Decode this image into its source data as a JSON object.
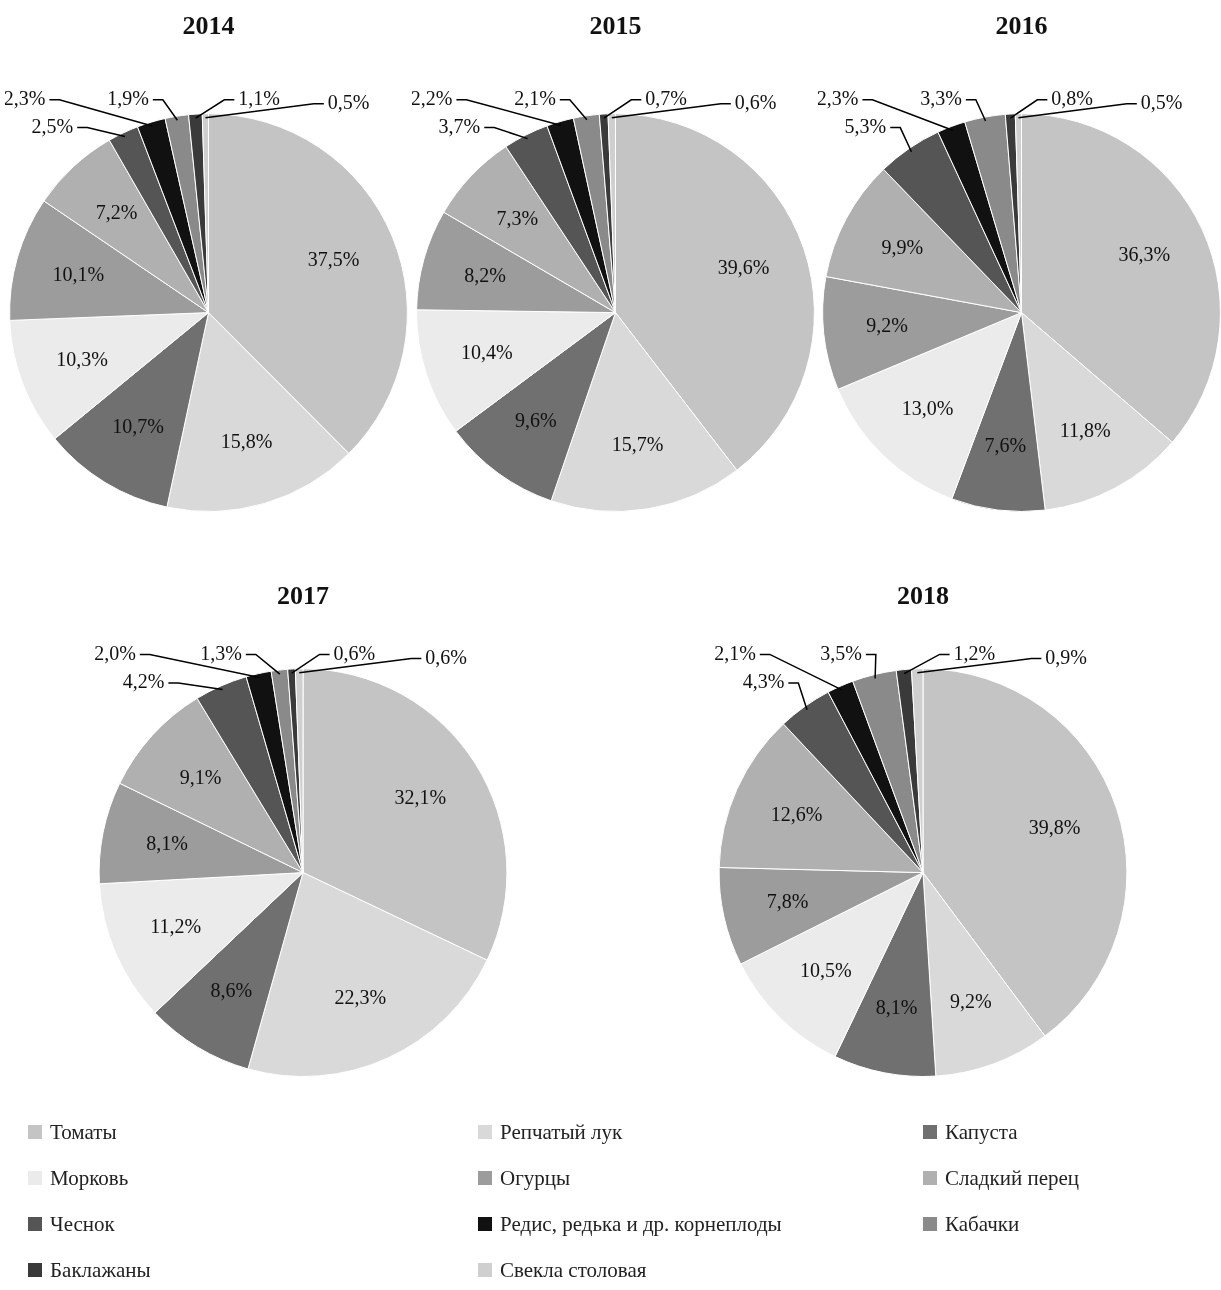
{
  "chart_data": [
    {
      "type": "pie",
      "title": "2014",
      "legend": "bottom",
      "categories": [
        "Томаты",
        "Репчатый лук",
        "Капуста",
        "Морковь",
        "Огурцы",
        "Сладкий перец",
        "Чеснок",
        "Редис, редька и др. корнеплоды",
        "Кабачки",
        "Баклажаны",
        "Свекла столовая"
      ],
      "values": [
        37.5,
        15.8,
        10.7,
        10.3,
        10.1,
        7.2,
        2.5,
        2.3,
        1.9,
        1.1,
        0.5
      ],
      "value_labels": [
        "37,5%",
        "15,8%",
        "10,7%",
        "10,3%",
        "10,1%",
        "7,2%",
        "2,5%",
        "2,3%",
        "1,9%",
        "1,1%",
        "0,5%"
      ],
      "colors": [
        "#c4c4c4",
        "#d9d9d9",
        "#707070",
        "#ebebeb",
        "#9c9c9c",
        "#b0b0b0",
        "#555555",
        "#111111",
        "#8a8a8a",
        "#3a3a3a",
        "#cfcfcf"
      ]
    },
    {
      "type": "pie",
      "title": "2015",
      "values": [
        39.6,
        15.7,
        9.6,
        10.4,
        8.2,
        7.3,
        3.7,
        2.2,
        2.1,
        0.7,
        0.6
      ],
      "value_labels": [
        "39,6%",
        "15,7%",
        "9,6%",
        "10,4%",
        "8,2%",
        "7,3%",
        "3,7%",
        "2,2%",
        "2,1%",
        "0,7%",
        "0,6%"
      ],
      "colors": [
        "#c4c4c4",
        "#d9d9d9",
        "#707070",
        "#ebebeb",
        "#9c9c9c",
        "#b0b0b0",
        "#555555",
        "#111111",
        "#8a8a8a",
        "#3a3a3a",
        "#cfcfcf"
      ]
    },
    {
      "type": "pie",
      "title": "2016",
      "values": [
        36.3,
        11.8,
        7.6,
        13.0,
        9.2,
        9.9,
        5.3,
        2.3,
        3.3,
        0.8,
        0.5
      ],
      "value_labels": [
        "36,3%",
        "11,8%",
        "7,6%",
        "13,0%",
        "9,2%",
        "9,9%",
        "5,3%",
        "2,3%",
        "3,3%",
        "0,8%",
        "0,5%"
      ],
      "colors": [
        "#c4c4c4",
        "#d9d9d9",
        "#707070",
        "#ebebeb",
        "#9c9c9c",
        "#b0b0b0",
        "#555555",
        "#111111",
        "#8a8a8a",
        "#3a3a3a",
        "#cfcfcf"
      ]
    },
    {
      "type": "pie",
      "title": "2017",
      "values": [
        32.1,
        22.3,
        8.6,
        11.2,
        8.1,
        9.1,
        4.2,
        2.0,
        1.3,
        0.6,
        0.6
      ],
      "value_labels": [
        "32,1%",
        "22,3%",
        "8,6%",
        "11,2%",
        "8,1%",
        "9,1%",
        "4,2%",
        "2,0%",
        "1,3%",
        "0,6%",
        "0,6%"
      ],
      "colors": [
        "#c4c4c4",
        "#d9d9d9",
        "#707070",
        "#ebebeb",
        "#9c9c9c",
        "#b0b0b0",
        "#555555",
        "#111111",
        "#8a8a8a",
        "#3a3a3a",
        "#cfcfcf"
      ]
    },
    {
      "type": "pie",
      "title": "2018",
      "values": [
        39.8,
        9.2,
        8.1,
        10.5,
        7.8,
        12.6,
        4.3,
        2.1,
        3.5,
        1.2,
        0.9
      ],
      "value_labels": [
        "39,8%",
        "9,2%",
        "8,1%",
        "10,5%",
        "7,8%",
        "12,6%",
        "4,3%",
        "2,1%",
        "3,5%",
        "1,2%",
        "0,9%"
      ],
      "colors": [
        "#c4c4c4",
        "#d9d9d9",
        "#707070",
        "#ebebeb",
        "#9c9c9c",
        "#b0b0b0",
        "#555555",
        "#111111",
        "#8a8a8a",
        "#3a3a3a",
        "#cfcfcf"
      ]
    }
  ]
}
